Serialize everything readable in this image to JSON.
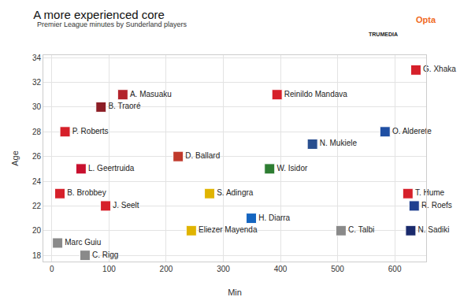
{
  "chart_data": {
    "type": "scatter",
    "title": "A more experienced core",
    "subtitle": "Premier League minutes by Sunderland players",
    "x_label": "Min",
    "y_label": "Age",
    "logos": [
      "TRUMEDIA",
      "Opta"
    ],
    "labels": [
      "G. Xhaka",
      "A. Masuaku",
      "B. Traoré",
      "Reinildo Mandava",
      "P. Roberts",
      "O. Alderete",
      "N. Mukiele",
      "D. Ballard",
      "L. Geertruida",
      "W. Isidor",
      "B. Brobbey",
      "S. Adingra",
      "T. Hume",
      "R. Roefs",
      "J. Seelt",
      "H. Diarra",
      "Eliezer Mayenda",
      "C. Talbi",
      "N. Sadiki",
      "Marc Guiu",
      "C. Rigg"
    ],
    "x": [
      637,
      124,
      86,
      394,
      23,
      583,
      456,
      221,
      51,
      381,
      14,
      276,
      623,
      634,
      94,
      349,
      244,
      506,
      628,
      10,
      58
    ],
    "values": [
      33,
      31,
      30,
      31,
      28,
      28,
      27,
      26,
      25,
      25,
      23,
      23,
      23,
      22,
      22,
      21,
      20,
      20,
      20,
      19,
      18
    ],
    "colors": [
      "#d6202a",
      "#b3242c",
      "#8c1d25",
      "#d6202a",
      "#d6202a",
      "#1f4fa3",
      "#2a4f8f",
      "#c0392b",
      "#c8102e",
      "#2e7d32",
      "#d6202a",
      "#e0b400",
      "#d6202a",
      "#1f3f8f",
      "#d6202a",
      "#1565c0",
      "#e0b400",
      "#8a8a8a",
      "#1a2a6c",
      "#8a8a8a",
      "#8a8a8a"
    ],
    "marker": "square",
    "xlim": [
      -15,
      655
    ],
    "ylim": [
      17.5,
      34.2
    ],
    "xticks": [
      0,
      100,
      200,
      300,
      400,
      500,
      600
    ],
    "yticks": [
      18,
      20,
      22,
      24,
      26,
      28,
      30,
      32,
      34
    ],
    "grid": true
  }
}
